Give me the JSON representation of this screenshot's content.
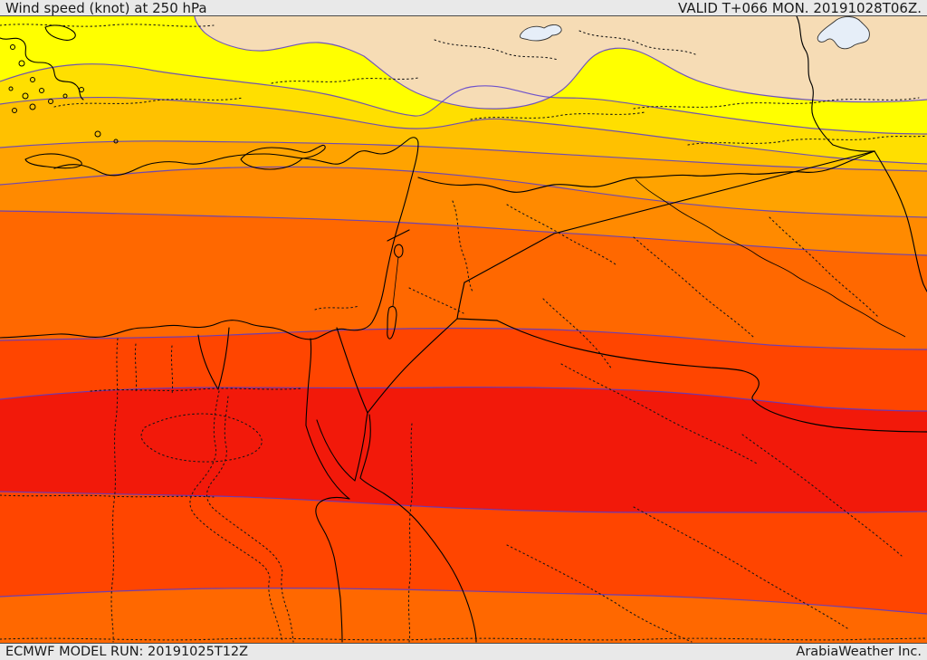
{
  "header": {
    "title": "Wind speed (knot) at 250 hPa",
    "valid": "VALID T+066 MON. 20191028T06Z."
  },
  "footer": {
    "model_run": "ECMWF MODEL RUN: 20191025T12Z",
    "brand": "ArabiaWeather Inc."
  },
  "map": {
    "kind": "filled-contour wind-speed map",
    "bands_top_to_bottom": [
      "cream",
      "yellow",
      "gold",
      "amber",
      "orange",
      "dark_orange",
      "orange_red",
      "red_orange",
      "red",
      "red_orange",
      "orange_red"
    ],
    "colors": {
      "bar_bg": "#e9e9e9",
      "text": "#1a1a1a",
      "contour_line": "#5639cf",
      "coastline": "#000000",
      "border_dotted": "#151515",
      "lake": "#e6eef8",
      "lake_outline": "#333333",
      "cream": "#f6dcb5",
      "yellow": "#ffff00",
      "gold": "#ffdf00",
      "amber": "#ffc100",
      "orange": "#ffa300",
      "dark_orange": "#ff8a00",
      "orange_red": "#ff6800",
      "red_orange": "#ff4500",
      "red": "#f2190a"
    }
  }
}
